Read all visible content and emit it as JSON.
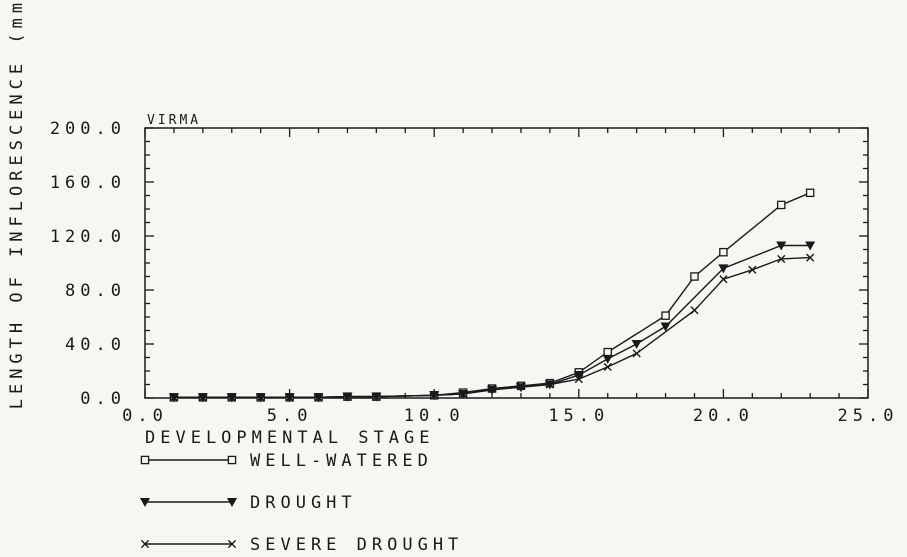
{
  "chart_data": {
    "type": "line",
    "panel_label": "VIRMA",
    "title": "",
    "xlabel": "DEVELOPMENTAL STAGE",
    "ylabel": "LENGTH OF INFLORESCENCE (mm)",
    "xlim": [
      0,
      25
    ],
    "ylim": [
      0,
      200
    ],
    "x_ticks": [
      0,
      5,
      10,
      15,
      20,
      25
    ],
    "y_ticks": [
      0,
      40,
      80,
      120,
      160,
      200
    ],
    "x_tick_labels": [
      "0.0",
      "5.0",
      "10.0",
      "15.0",
      "20.0",
      "25.0"
    ],
    "y_tick_labels": [
      "0.0",
      "40.0",
      "80.0",
      "120.0",
      "160.0",
      "200.0"
    ],
    "grid": false,
    "legend_position": "below",
    "series": [
      {
        "name": "WELL-WATERED",
        "marker": "square",
        "x": [
          1,
          2,
          3,
          4,
          5,
          6,
          7,
          8,
          10,
          11,
          12,
          13,
          14,
          15,
          16,
          18,
          19,
          20,
          22,
          23
        ],
        "y": [
          0.5,
          0.5,
          0.5,
          0.5,
          0.5,
          0.5,
          1,
          1,
          2,
          4,
          7,
          9,
          11,
          19,
          34,
          61,
          90,
          108,
          143,
          152
        ]
      },
      {
        "name": "DROUGHT",
        "marker": "triangle-down",
        "x": [
          1,
          2,
          3,
          4,
          5,
          6,
          7,
          8,
          10,
          11,
          12,
          13,
          14,
          15,
          16,
          17,
          18,
          20,
          22,
          23
        ],
        "y": [
          0.5,
          0.5,
          0.5,
          0.5,
          0.5,
          0.5,
          1,
          1,
          2,
          3,
          6,
          8,
          10,
          17,
          29,
          40,
          53,
          96,
          113,
          113
        ]
      },
      {
        "name": "SEVERE DROUGHT",
        "marker": "x",
        "x": [
          1,
          2,
          3,
          4,
          5,
          6,
          7,
          8,
          10,
          11,
          12,
          13,
          14,
          15,
          16,
          17,
          19,
          20,
          21,
          22,
          23
        ],
        "y": [
          0.5,
          0.5,
          0.5,
          0.5,
          0.5,
          0.5,
          1,
          1,
          2,
          3,
          7,
          9,
          10,
          14,
          23,
          33,
          65,
          88,
          95,
          103,
          104
        ]
      }
    ]
  }
}
